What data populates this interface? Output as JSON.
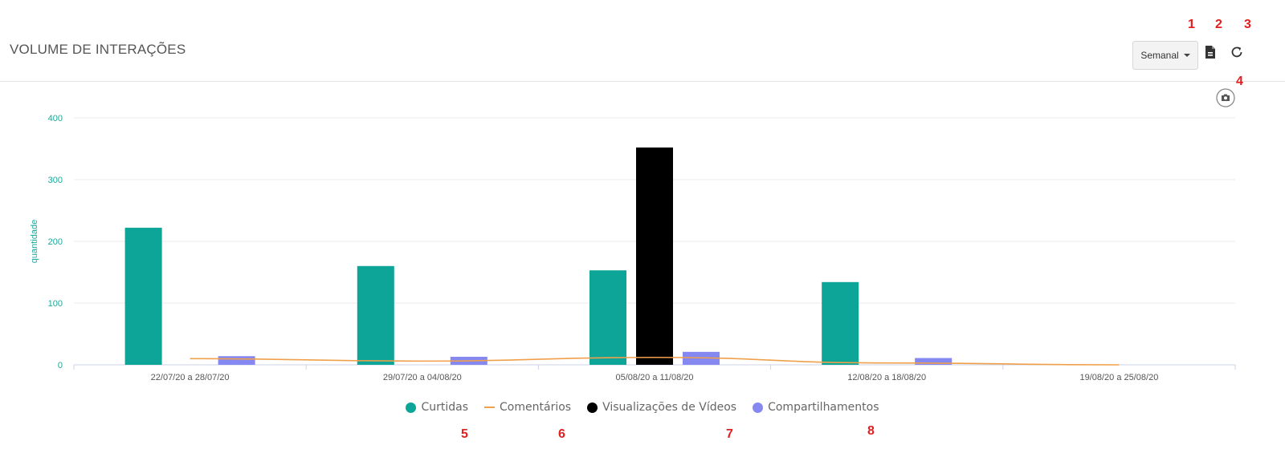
{
  "header": {
    "title": "VOLUME DE INTERAÇÕES",
    "period_select": "Semanal",
    "export_icon": "file-export-icon",
    "refresh_icon": "refresh-icon",
    "screenshot_icon": "camera-icon"
  },
  "annotations": [
    "1",
    "2",
    "3",
    "4",
    "5",
    "6",
    "7",
    "8"
  ],
  "colors": {
    "curtidas": "#0ca597",
    "comentarios": "#f0a04b",
    "visualizacoes": "#000000",
    "compartilhamentos": "#8588f0",
    "axis_text": "#1aa89a",
    "grid": "#ebebeb"
  },
  "chart_data": {
    "type": "bar",
    "ylabel": "quantidade",
    "ylim": [
      0,
      400
    ],
    "yticks": [
      "0",
      "100",
      "200",
      "300",
      "400"
    ],
    "categories": [
      "22/07/20 a 28/07/20",
      "29/07/20 a 04/08/20",
      "05/08/20 a 11/08/20",
      "12/08/20 a 18/08/20",
      "19/08/20 a 25/08/20"
    ],
    "series": [
      {
        "name": "Curtidas",
        "type": "bar",
        "values": [
          222,
          160,
          153,
          134,
          0
        ]
      },
      {
        "name": "Comentários",
        "type": "line",
        "values": [
          10,
          6,
          12,
          3,
          0
        ]
      },
      {
        "name": "Visualizações de Vídeos",
        "type": "bar",
        "values": [
          0,
          0,
          352,
          0,
          0
        ]
      },
      {
        "name": "Compartilhamentos",
        "type": "bar",
        "values": [
          14,
          13,
          21,
          11,
          0
        ]
      }
    ],
    "grid": true,
    "legend_position": "bottom-center"
  }
}
